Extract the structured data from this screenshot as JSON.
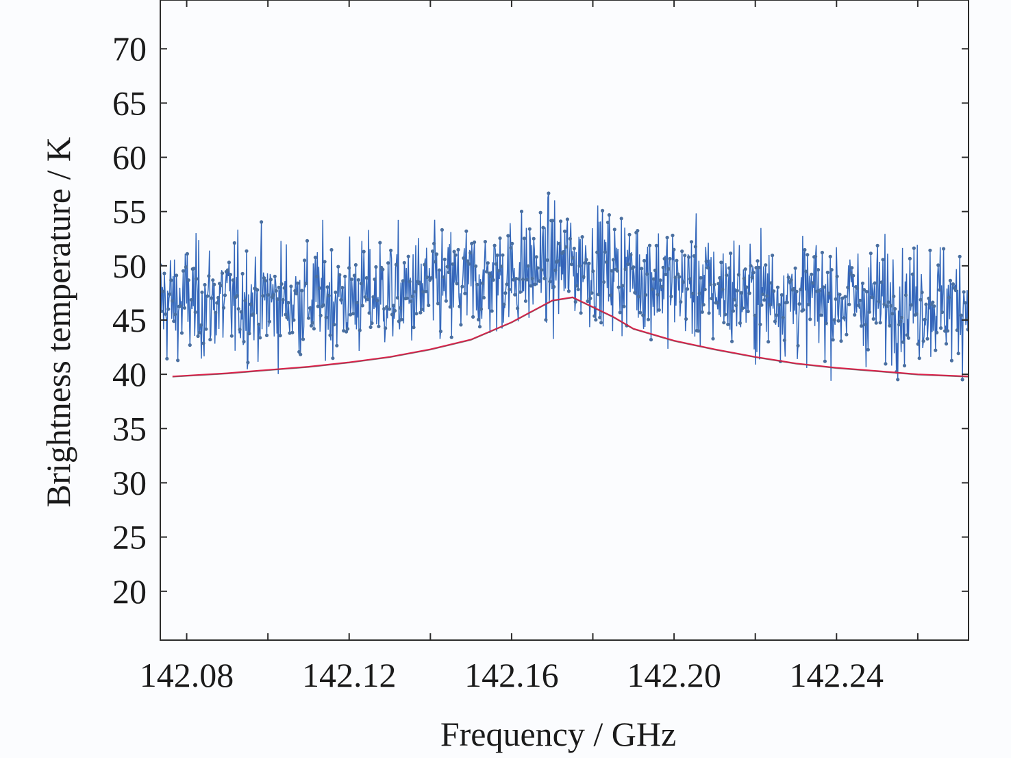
{
  "chart_data": {
    "type": "line",
    "title": "",
    "xlabel": "Frequency / GHz",
    "ylabel": "Brightness temperature / K",
    "xlim": [
      142.0735,
      142.2725
    ],
    "ylim": [
      15.5,
      74.5
    ],
    "xticks": [
      142.08,
      142.12,
      142.16,
      142.2,
      142.24
    ],
    "xtick_labels": [
      "142.08",
      "142.12",
      "142.16",
      "142.20",
      "142.24"
    ],
    "xticks_minor": [
      142.1,
      142.14,
      142.18,
      142.22,
      142.26
    ],
    "yticks": [
      20,
      25,
      30,
      35,
      40,
      45,
      50,
      55,
      60,
      65,
      70
    ],
    "ytick_labels": [
      "20",
      "25",
      "30",
      "35",
      "40",
      "45",
      "50",
      "55",
      "60",
      "65",
      "70"
    ],
    "grid": false,
    "legend": "none",
    "series": [
      {
        "kind": "noisy-measurement",
        "style": "line with markers",
        "color": "#2f5bb5",
        "stem_color": "#5b9bd5",
        "marker_color": "#4a6fa0",
        "x_range": [
          142.0735,
          142.2725
        ],
        "num_points": 1200,
        "baseline_profile": "smooth Lorentzian-like line from ~46.5 K at edges to ~50 K at the center (142.175 GHz)",
        "noise_amplitude_K": 5.5,
        "min_value": 39.4,
        "max_value": 60.5
      },
      {
        "kind": "model",
        "style": "line",
        "color": "#e0204a",
        "secondary_color": "#555555",
        "x": [
          142.0765,
          142.09,
          142.1,
          142.11,
          142.12,
          142.13,
          142.14,
          142.15,
          142.16,
          142.165,
          142.17,
          142.175,
          142.18,
          142.185,
          142.19,
          142.2,
          142.21,
          142.22,
          142.23,
          142.24,
          142.25,
          142.26,
          142.2725
        ],
        "values": [
          39.8,
          40.1,
          40.4,
          40.7,
          41.1,
          41.6,
          42.3,
          43.2,
          44.8,
          45.8,
          46.8,
          47.1,
          46.2,
          45.3,
          44.2,
          43.1,
          42.3,
          41.6,
          41.0,
          40.6,
          40.3,
          40.0,
          39.8
        ]
      }
    ]
  }
}
